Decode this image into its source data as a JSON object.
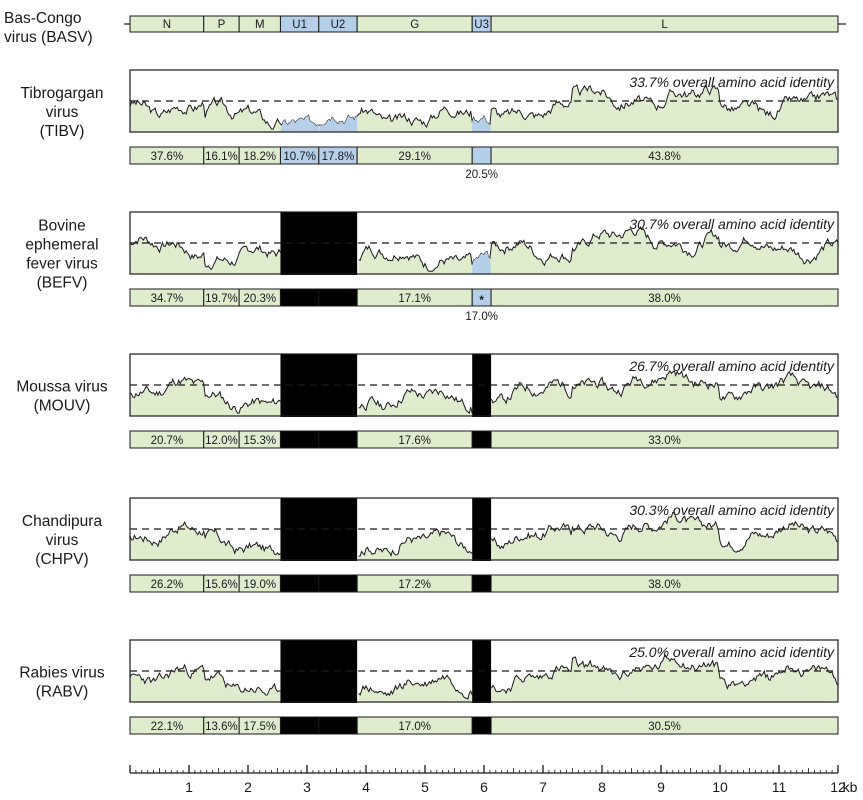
{
  "colors": {
    "green": "#dfeccd",
    "blue": "#b5cfe8",
    "black": "#000000",
    "outline": "#1a1a1a"
  },
  "reference": {
    "label_lines": [
      "Bas-Congo",
      "virus (BASV)"
    ],
    "genes": [
      {
        "name": "N",
        "start": 0.0,
        "end": 1.25,
        "color": "green"
      },
      {
        "name": "P",
        "start": 1.25,
        "end": 1.85,
        "color": "green"
      },
      {
        "name": "M",
        "start": 1.85,
        "end": 2.55,
        "color": "green"
      },
      {
        "name": "U1",
        "start": 2.55,
        "end": 3.2,
        "color": "blue"
      },
      {
        "name": "U2",
        "start": 3.2,
        "end": 3.85,
        "color": "blue"
      },
      {
        "name": "G",
        "start": 3.85,
        "end": 5.8,
        "color": "green"
      },
      {
        "name": "U3",
        "start": 5.8,
        "end": 6.12,
        "color": "blue"
      },
      {
        "name": "L",
        "start": 6.12,
        "end": 12.0,
        "color": "green"
      }
    ]
  },
  "viruses": [
    {
      "id": "tibv",
      "label_lines": [
        "Tibrogargan",
        "virus",
        "(TIBV)"
      ],
      "identity_text": "33.7% overall amino acid identity",
      "missing_genes": [],
      "profile_seed": 3,
      "segments": [
        {
          "gene": "N",
          "value": "37.6%"
        },
        {
          "gene": "P",
          "value": "16.1%"
        },
        {
          "gene": "M",
          "value": "18.2%"
        },
        {
          "gene": "U1",
          "value": "10.7%"
        },
        {
          "gene": "U2",
          "value": "17.8%"
        },
        {
          "gene": "G",
          "value": "29.1%"
        },
        {
          "gene": "U3",
          "value": ""
        },
        {
          "gene": "L",
          "value": "43.8%"
        }
      ],
      "below_note": {
        "gene": "U3",
        "text": "20.5%"
      }
    },
    {
      "id": "befv",
      "label_lines": [
        "Bovine",
        "ephemeral",
        "fever virus",
        "(BEFV)"
      ],
      "identity_text": "30.7% overall amino acid identity",
      "missing_genes": [
        "U1",
        "U2"
      ],
      "profile_seed": 7,
      "segments": [
        {
          "gene": "N",
          "value": "34.7%"
        },
        {
          "gene": "P",
          "value": "19.7%"
        },
        {
          "gene": "M",
          "value": "20.3%"
        },
        {
          "gene": "U1",
          "value": ""
        },
        {
          "gene": "U2",
          "value": ""
        },
        {
          "gene": "G",
          "value": "17.1%"
        },
        {
          "gene": "U3",
          "value": "*"
        },
        {
          "gene": "L",
          "value": "38.0%"
        }
      ],
      "below_note": {
        "gene": "U3",
        "text": "17.0%"
      }
    },
    {
      "id": "mouv",
      "label_lines": [
        "Moussa virus",
        "(MOUV)"
      ],
      "identity_text": "26.7% overall amino acid identity",
      "missing_genes": [
        "U1",
        "U2",
        "U3"
      ],
      "profile_seed": 11,
      "segments": [
        {
          "gene": "N",
          "value": "20.7%"
        },
        {
          "gene": "P",
          "value": "12.0%"
        },
        {
          "gene": "M",
          "value": "15.3%"
        },
        {
          "gene": "U1",
          "value": ""
        },
        {
          "gene": "U2",
          "value": ""
        },
        {
          "gene": "G",
          "value": "17.6%"
        },
        {
          "gene": "U3",
          "value": ""
        },
        {
          "gene": "L",
          "value": "33.0%"
        }
      ],
      "below_note": null
    },
    {
      "id": "chpv",
      "label_lines": [
        "Chandipura",
        "virus",
        "(CHPV)"
      ],
      "identity_text": "30.3% overall amino acid identity",
      "missing_genes": [
        "U1",
        "U2",
        "U3"
      ],
      "profile_seed": 17,
      "segments": [
        {
          "gene": "N",
          "value": "26.2%"
        },
        {
          "gene": "P",
          "value": "15.6%"
        },
        {
          "gene": "M",
          "value": "19.0%"
        },
        {
          "gene": "U1",
          "value": ""
        },
        {
          "gene": "U2",
          "value": ""
        },
        {
          "gene": "G",
          "value": "17.2%"
        },
        {
          "gene": "U3",
          "value": ""
        },
        {
          "gene": "L",
          "value": "38.0%"
        }
      ],
      "below_note": null
    },
    {
      "id": "rabv",
      "label_lines": [
        "Rabies virus",
        "(RABV)"
      ],
      "identity_text": "25.0% overall amino acid identity",
      "missing_genes": [
        "U1",
        "U2",
        "U3"
      ],
      "profile_seed": 23,
      "segments": [
        {
          "gene": "N",
          "value": "22.1%"
        },
        {
          "gene": "P",
          "value": "13.6%"
        },
        {
          "gene": "M",
          "value": "17.5%"
        },
        {
          "gene": "U1",
          "value": ""
        },
        {
          "gene": "U2",
          "value": ""
        },
        {
          "gene": "G",
          "value": "17.0%"
        },
        {
          "gene": "U3",
          "value": ""
        },
        {
          "gene": "L",
          "value": "30.5%"
        }
      ],
      "below_note": null
    }
  ],
  "axis": {
    "min": 0,
    "max": 12,
    "ticks": [
      "1",
      "2",
      "3",
      "4",
      "5",
      "6",
      "7",
      "8",
      "9",
      "10",
      "11",
      "12"
    ],
    "unit": "kb"
  }
}
